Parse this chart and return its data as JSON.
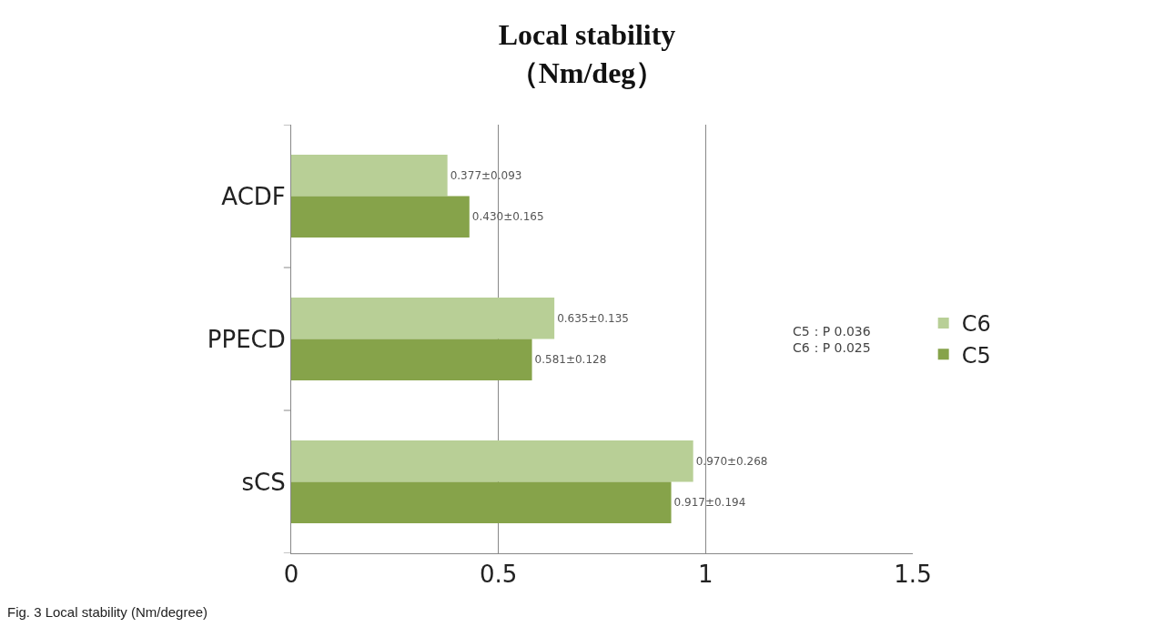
{
  "chart_data": {
    "type": "bar",
    "orientation": "horizontal",
    "title": "Local stability\n（Nm/deg）",
    "categories": [
      "ACDF",
      "PPECD",
      "sCS"
    ],
    "series": [
      {
        "name": "C6",
        "color": "#b8cf96",
        "values": [
          0.377,
          0.635,
          0.97
        ],
        "value_labels": [
          "0.377±0.093",
          "0.635±0.135",
          "0.970±0.268"
        ]
      },
      {
        "name": "C5",
        "color": "#86a34a",
        "values": [
          0.43,
          0.581,
          0.917
        ],
        "value_labels": [
          "0.430±0.165",
          "0.581±0.128",
          "0.917±0.194"
        ]
      }
    ],
    "xlim": [
      0,
      1.5
    ],
    "xticks": [
      0,
      0.5,
      1,
      1.5
    ],
    "grid": "x",
    "legend": "right",
    "annotations": [
      "C5：P 0.036\nC6：P 0.025",
      "Fig. 3 Local stability (Nm/degree)"
    ]
  }
}
